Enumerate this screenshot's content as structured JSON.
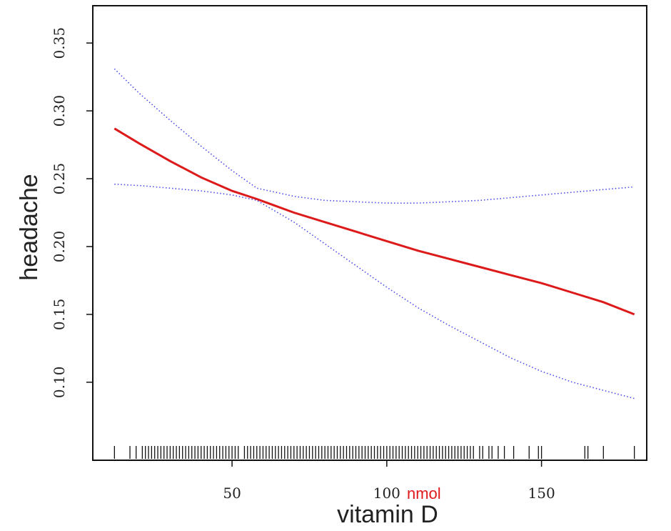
{
  "chart_data": {
    "type": "line",
    "xlabel": "vitamin D",
    "ylabel": "headache",
    "annotation": {
      "text": "nmol",
      "color": "#e0191c"
    },
    "xlim": [
      5,
      184
    ],
    "ylim": [
      0.0425,
      0.3775
    ],
    "x_ticks": [
      50,
      100,
      150
    ],
    "x_tick_labels": [
      "50",
      "100",
      "150"
    ],
    "y_ticks": [
      0.1,
      0.15,
      0.2,
      0.25,
      0.3,
      0.35
    ],
    "y_tick_labels": [
      "0.10",
      "0.15",
      "0.20",
      "0.25",
      "0.30",
      "0.35"
    ],
    "grid": false,
    "series": [
      {
        "role": "estimate",
        "color": "#dd1a1a",
        "style": "solid",
        "x": [
          12,
          20,
          30,
          40,
          50,
          58,
          70,
          80,
          90,
          100,
          110,
          120,
          130,
          140,
          150,
          160,
          170,
          180
        ],
        "y": [
          0.287,
          0.276,
          0.263,
          0.251,
          0.241,
          0.235,
          0.225,
          0.218,
          0.211,
          0.204,
          0.197,
          0.191,
          0.185,
          0.179,
          0.173,
          0.166,
          0.159,
          0.15
        ]
      },
      {
        "role": "upper-ci",
        "color": "#4a4af0",
        "style": "dotted",
        "x": [
          12,
          20,
          30,
          40,
          50,
          58,
          70,
          80,
          90,
          100,
          110,
          120,
          130,
          140,
          150,
          160,
          170,
          180
        ],
        "y": [
          0.331,
          0.313,
          0.293,
          0.274,
          0.256,
          0.243,
          0.237,
          0.234,
          0.233,
          0.232,
          0.232,
          0.233,
          0.234,
          0.236,
          0.238,
          0.24,
          0.242,
          0.244
        ]
      },
      {
        "role": "lower-ci",
        "color": "#4a4af0",
        "style": "dotted",
        "x": [
          12,
          20,
          30,
          40,
          50,
          58,
          70,
          80,
          90,
          100,
          110,
          120,
          130,
          140,
          150,
          160,
          170,
          180
        ],
        "y": [
          0.246,
          0.245,
          0.243,
          0.241,
          0.238,
          0.234,
          0.218,
          0.202,
          0.186,
          0.17,
          0.155,
          0.142,
          0.13,
          0.118,
          0.108,
          0.1,
          0.094,
          0.088
        ]
      }
    ],
    "rug": [
      12,
      17,
      19,
      21,
      22,
      23,
      24,
      25,
      26,
      27,
      28,
      29,
      30,
      31,
      32,
      33,
      34,
      35,
      36,
      37,
      38,
      39,
      40,
      41,
      42,
      43,
      44,
      45,
      46,
      47,
      48,
      49,
      50,
      51,
      52,
      54,
      55,
      56,
      57,
      58,
      59,
      60,
      61,
      62,
      63,
      64,
      65,
      66,
      67,
      68,
      69,
      70,
      71,
      72,
      73,
      74,
      75,
      76,
      77,
      78,
      79,
      80,
      81,
      82,
      83,
      84,
      85,
      86,
      87,
      88,
      89,
      90,
      91,
      92,
      93,
      94,
      95,
      96,
      97,
      98,
      99,
      100,
      101,
      102,
      103,
      104,
      105,
      106,
      107,
      108,
      109,
      110,
      111,
      112,
      113,
      114,
      115,
      116,
      117,
      118,
      119,
      120,
      121,
      122,
      123,
      124,
      125,
      126,
      127,
      128,
      130,
      131,
      133,
      134,
      136,
      138,
      141,
      146,
      149,
      150,
      164,
      165,
      170,
      180
    ]
  }
}
